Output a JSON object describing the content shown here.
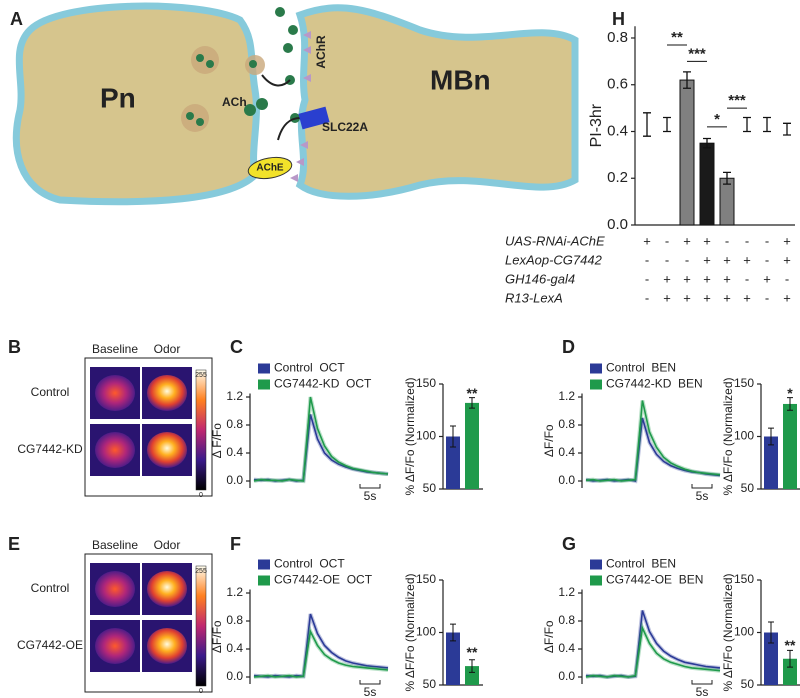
{
  "panel_labels": [
    "A",
    "B",
    "C",
    "D",
    "E",
    "F",
    "G",
    "H"
  ],
  "diagram": {
    "pre": "Pn",
    "post": "MBn",
    "transmitter": "ACh",
    "receptor": "AChR",
    "transporter": "SLC22A",
    "enzyme": "AChE"
  },
  "heatmaps": [
    {
      "columns": [
        "Baseline",
        "Odor"
      ],
      "rows": [
        "Control",
        "CG7442-KD"
      ],
      "colorbar_ticks": [
        0,
        255
      ]
    },
    {
      "columns": [
        "Baseline",
        "Odor"
      ],
      "rows": [
        "Control",
        "CG7442-OE"
      ],
      "colorbar_ticks": [
        0,
        255
      ]
    }
  ],
  "chart_data": [
    {
      "type": "bar",
      "y_label": "PI-3hr",
      "ylim": [
        0,
        0.85
      ],
      "yticks": [
        {
          "value": 0,
          "label": "0.0"
        },
        0.2,
        0.4,
        0.6,
        0.8
      ],
      "values": [
        0.43,
        0.43,
        0.62,
        0.35,
        0.2,
        0.43,
        0.43,
        0.41
      ],
      "errors": [
        0.05,
        0.03,
        0.035,
        0.02,
        0.025,
        0.03,
        0.03,
        0.025
      ],
      "colors": [
        null,
        null,
        "#808080",
        "#1a1a1a",
        "#808080",
        null,
        null,
        null
      ],
      "genotypes": [
        {
          "name": "UAS-RNAi-AChE",
          "signs": [
            "+",
            "-",
            "+",
            "+",
            "-",
            "-",
            "-",
            "+"
          ]
        },
        {
          "name": "LexAop-CG7442",
          "signs": [
            "-",
            "-",
            "-",
            "+",
            "+",
            "+",
            "-",
            "+"
          ]
        },
        {
          "name": "GH146-gal4",
          "signs": [
            "-",
            "+",
            "+",
            "+",
            "+",
            "-",
            "+",
            "-"
          ]
        },
        {
          "name": "R13-LexA",
          "signs": [
            "-",
            "+",
            "+",
            "+",
            "+",
            "+",
            "-",
            "+"
          ]
        }
      ],
      "annotations": [
        {
          "text": "**",
          "y": 0.77
        },
        {
          "text": "***",
          "y": 0.7
        },
        {
          "text": "*",
          "y": 0.42
        },
        {
          "text": "***",
          "y": 0.5
        }
      ]
    },
    {
      "type": "line",
      "y_label": "Δ F/Fo",
      "ylim": [
        -0.1,
        1.25
      ],
      "yticks": [
        {
          "value": 0,
          "label": "0.0"
        },
        0.4,
        0.8,
        1.2
      ],
      "scale_bar": "5s",
      "series": [
        {
          "name": "Control  OCT",
          "color": "#2b3a97",
          "values": [
            0.02,
            0.01,
            0.02,
            0.0,
            0.01,
            0.02,
            0.0,
            0.01,
            0.95,
            0.6,
            0.4,
            0.3,
            0.24,
            0.2,
            0.17,
            0.15,
            0.13,
            0.12,
            0.11,
            0.1
          ]
        },
        {
          "name": "CG7442-KD  OCT",
          "color": "#1f9a4b",
          "values": [
            0.0,
            0.02,
            0.01,
            0.01,
            0.0,
            0.02,
            0.01,
            0.0,
            1.2,
            0.75,
            0.5,
            0.35,
            0.27,
            0.22,
            0.18,
            0.16,
            0.14,
            0.12,
            0.11,
            0.1
          ]
        }
      ]
    },
    {
      "type": "bar",
      "y_label": "% ΔF/Fo (Normalized)",
      "ylim": [
        50,
        150
      ],
      "yticks": [
        50,
        100,
        150
      ],
      "values": [
        100,
        132
      ],
      "errors": [
        10,
        5
      ],
      "colors": [
        "#2b3a97",
        "#1f9a4b"
      ],
      "annotations": [
        {
          "text": "**",
          "y": 140
        }
      ]
    },
    {
      "type": "line",
      "y_label": "ΔF/Fo",
      "ylim": [
        -0.1,
        1.25
      ],
      "yticks": [
        {
          "value": 0,
          "label": "0.0"
        },
        0.4,
        0.8,
        1.2
      ],
      "scale_bar": "5s",
      "series": [
        {
          "name": "Control  BEN",
          "color": "#2b3a97",
          "values": [
            0.02,
            0.0,
            0.01,
            0.02,
            0.0,
            0.01,
            0.02,
            0.0,
            0.9,
            0.55,
            0.38,
            0.28,
            0.22,
            0.18,
            0.15,
            0.13,
            0.12,
            0.1,
            0.09,
            0.08
          ]
        },
        {
          "name": "CG7442-KD  BEN",
          "color": "#1f9a4b",
          "values": [
            0.01,
            0.02,
            0.0,
            0.01,
            0.02,
            0.0,
            0.01,
            0.02,
            1.15,
            0.7,
            0.48,
            0.34,
            0.26,
            0.21,
            0.17,
            0.14,
            0.12,
            0.11,
            0.1,
            0.09
          ]
        }
      ]
    },
    {
      "type": "bar",
      "y_label": "% ΔF/Fo (Normalized)",
      "ylim": [
        50,
        150
      ],
      "yticks": [
        50,
        100,
        150
      ],
      "values": [
        100,
        131
      ],
      "errors": [
        8,
        6
      ],
      "colors": [
        "#2b3a97",
        "#1f9a4b"
      ],
      "annotations": [
        {
          "text": "*",
          "y": 140
        }
      ]
    },
    {
      "type": "line",
      "y_label": "ΔF/Fo",
      "ylim": [
        -0.1,
        1.25
      ],
      "yticks": [
        {
          "value": 0,
          "label": "0.0"
        },
        0.4,
        0.8,
        1.2
      ],
      "scale_bar": "5s",
      "series": [
        {
          "name": "Control  OCT",
          "color": "#2b3a97",
          "values": [
            0.02,
            0.01,
            0.0,
            0.02,
            0.01,
            0.0,
            0.02,
            0.01,
            0.9,
            0.62,
            0.45,
            0.35,
            0.28,
            0.23,
            0.2,
            0.18,
            0.16,
            0.15,
            0.14,
            0.13
          ]
        },
        {
          "name": "CG7442-OE  OCT",
          "color": "#1f9a4b",
          "values": [
            0.0,
            0.01,
            0.02,
            0.0,
            0.01,
            0.02,
            0.0,
            0.01,
            0.65,
            0.45,
            0.32,
            0.25,
            0.2,
            0.17,
            0.15,
            0.14,
            0.13,
            0.12,
            0.11,
            0.1
          ]
        }
      ]
    },
    {
      "type": "bar",
      "y_label": "% ΔF/Fo (Normalized)",
      "ylim": [
        50,
        150
      ],
      "yticks": [
        50,
        100,
        150
      ],
      "values": [
        100,
        68
      ],
      "errors": [
        8,
        6
      ],
      "colors": [
        "#2b3a97",
        "#1f9a4b"
      ],
      "annotations": [
        {
          "text": "**",
          "y": 80
        }
      ]
    },
    {
      "type": "line",
      "y_label": "ΔF/Fo",
      "ylim": [
        -0.1,
        1.25
      ],
      "yticks": [
        {
          "value": 0,
          "label": "0.0"
        },
        0.4,
        0.8,
        1.2
      ],
      "scale_bar": "5s",
      "series": [
        {
          "name": "Control  BEN",
          "color": "#2b3a97",
          "values": [
            0.02,
            0.01,
            0.02,
            0.0,
            0.01,
            0.02,
            0.0,
            0.01,
            0.95,
            0.65,
            0.48,
            0.37,
            0.3,
            0.25,
            0.21,
            0.19,
            0.17,
            0.15,
            0.14,
            0.13
          ]
        },
        {
          "name": "CG7442-OE  BEN",
          "color": "#1f9a4b",
          "values": [
            0.0,
            0.02,
            0.01,
            0.0,
            0.02,
            0.01,
            0.0,
            0.02,
            0.7,
            0.48,
            0.34,
            0.26,
            0.21,
            0.18,
            0.15,
            0.13,
            0.12,
            0.11,
            0.1,
            0.09
          ]
        }
      ]
    },
    {
      "type": "bar",
      "y_label": "% ΔF/Fo (Normalized)",
      "ylim": [
        50,
        150
      ],
      "yticks": [
        50,
        100,
        150
      ],
      "values": [
        100,
        75
      ],
      "errors": [
        10,
        8
      ],
      "colors": [
        "#2b3a97",
        "#1f9a4b"
      ],
      "annotations": [
        {
          "text": "**",
          "y": 87
        }
      ]
    }
  ]
}
